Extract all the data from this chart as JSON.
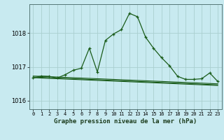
{
  "title": "Graphe pression niveau de la mer (hPa)",
  "bg_color": "#c8eaf0",
  "grid_major_color": "#aacfcf",
  "grid_minor_color": "#bde0e0",
  "line_color": "#1a5c1a",
  "xlim": [
    -0.5,
    23.5
  ],
  "ylim": [
    1015.75,
    1018.85
  ],
  "yticks": [
    1016,
    1017,
    1018
  ],
  "xticks": [
    0,
    1,
    2,
    3,
    4,
    5,
    6,
    7,
    8,
    9,
    10,
    11,
    12,
    13,
    14,
    15,
    16,
    17,
    18,
    19,
    20,
    21,
    22,
    23
  ],
  "main_series": [
    1016.67,
    1016.73,
    1016.72,
    1016.67,
    1016.77,
    1016.9,
    1016.96,
    1017.55,
    1016.85,
    1017.78,
    1017.97,
    1018.1,
    1018.58,
    1018.48,
    1017.88,
    1017.55,
    1017.27,
    1017.03,
    1016.72,
    1016.63,
    1016.63,
    1016.65,
    1016.82,
    1016.57
  ],
  "flat1": [
    1016.68,
    1016.67,
    1016.66,
    1016.65,
    1016.64,
    1016.63,
    1016.62,
    1016.61,
    1016.6,
    1016.59,
    1016.58,
    1016.57,
    1016.56,
    1016.55,
    1016.54,
    1016.53,
    1016.52,
    1016.51,
    1016.5,
    1016.49,
    1016.48,
    1016.47,
    1016.46,
    1016.45
  ],
  "flat2": [
    1016.7,
    1016.69,
    1016.68,
    1016.67,
    1016.66,
    1016.65,
    1016.64,
    1016.63,
    1016.62,
    1016.61,
    1016.6,
    1016.59,
    1016.58,
    1016.57,
    1016.56,
    1016.55,
    1016.54,
    1016.53,
    1016.52,
    1016.51,
    1016.5,
    1016.49,
    1016.48,
    1016.47
  ],
  "flat3": [
    1016.73,
    1016.72,
    1016.71,
    1016.7,
    1016.69,
    1016.68,
    1016.67,
    1016.66,
    1016.65,
    1016.64,
    1016.63,
    1016.62,
    1016.61,
    1016.6,
    1016.59,
    1016.58,
    1016.57,
    1016.56,
    1016.55,
    1016.54,
    1016.53,
    1016.52,
    1016.51,
    1016.5
  ],
  "xlabel_fontsize": 6.5,
  "ylabel_fontsize": 6,
  "xtick_fontsize": 5,
  "ytick_fontsize": 6
}
